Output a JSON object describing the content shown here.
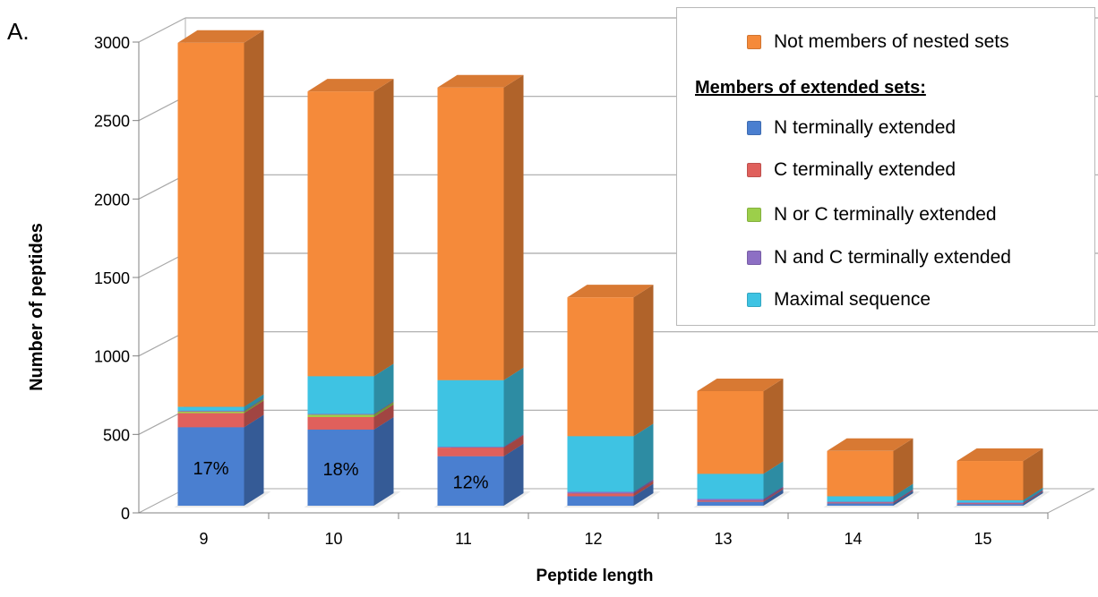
{
  "panel_label": "A.",
  "chart_data": {
    "type": "bar",
    "stacked": true,
    "style": "3d-column",
    "xlabel": "Peptide length",
    "ylabel": "Number of peptides",
    "categories": [
      "9",
      "10",
      "11",
      "12",
      "13",
      "14",
      "15"
    ],
    "ylim": [
      0,
      3000
    ],
    "yticks": [
      "0",
      "500",
      "1000",
      "1500",
      "2000",
      "2500",
      "3000"
    ],
    "ytick_values": [
      0,
      500,
      1000,
      1500,
      2000,
      2500,
      3000
    ],
    "grid": true,
    "legend_position": "top-right",
    "legend_heading": "Members of extended sets:",
    "series": [
      {
        "name": "N terminally extended",
        "color": "#4a7fd0",
        "values": [
          500,
          485,
          315,
          60,
          25,
          15,
          10
        ]
      },
      {
        "name": "C terminally extended",
        "color": "#e0605c",
        "values": [
          90,
          80,
          55,
          18,
          8,
          5,
          5
        ]
      },
      {
        "name": "N or C terminally extended",
        "color": "#9ccf4a",
        "values": [
          10,
          15,
          0,
          0,
          0,
          0,
          0
        ]
      },
      {
        "name": "N and C terminally extended",
        "color": "#8d6fc4",
        "values": [
          5,
          5,
          5,
          10,
          10,
          5,
          5
        ]
      },
      {
        "name": "Maximal sequence",
        "color": "#3ec3e3",
        "values": [
          25,
          240,
          425,
          355,
          160,
          35,
          15
        ]
      },
      {
        "name": "Not members of nested sets",
        "color": "#f58a3a",
        "values": [
          2320,
          1815,
          1865,
          885,
          527,
          289,
          250
        ]
      }
    ],
    "annotations": [
      {
        "category": "9",
        "text": "17%"
      },
      {
        "category": "10",
        "text": "18%"
      },
      {
        "category": "11",
        "text": "12%"
      }
    ]
  }
}
